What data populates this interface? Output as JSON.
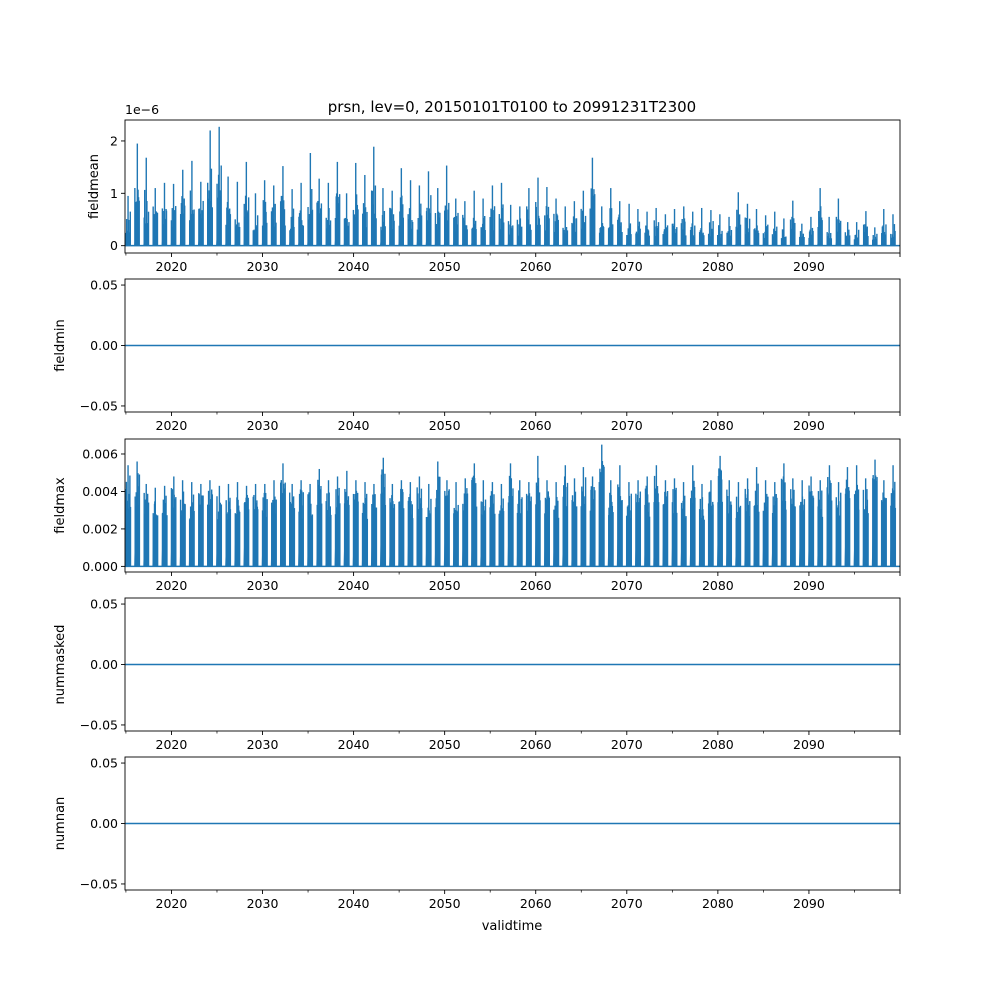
{
  "figure": {
    "title": "prsn, lev=0, 20150101T0100 to 20991231T2300",
    "xlabel": "validtime",
    "series_color": "#1f77b4"
  },
  "chart_data": [
    {
      "type": "line",
      "name": "fieldmean",
      "ylabel": "fieldmean",
      "offset_label": "1e−6",
      "xlim": [
        2014.9,
        2100.0
      ],
      "ylim": [
        -1.4e-07,
        2.4e-06
      ],
      "x_ticks": [
        2020,
        2030,
        2040,
        2050,
        2060,
        2070,
        2080,
        2090
      ],
      "x_tick_labels": [
        "2020",
        "2030",
        "2040",
        "2050",
        "2060",
        "2070",
        "2080",
        "2090"
      ],
      "y_ticks": [
        0,
        1e-06,
        2e-06
      ],
      "y_tick_labels": [
        "0",
        "1",
        "2"
      ],
      "seasonal_peaks": {
        "years": [
          2015,
          2016,
          2017,
          2018,
          2019,
          2020,
          2021,
          2022,
          2023,
          2024,
          2025,
          2026,
          2027,
          2028,
          2029,
          2030,
          2031,
          2032,
          2033,
          2034,
          2035,
          2036,
          2037,
          2038,
          2039,
          2040,
          2041,
          2042,
          2043,
          2044,
          2045,
          2046,
          2047,
          2048,
          2049,
          2050,
          2051,
          2052,
          2053,
          2054,
          2055,
          2056,
          2057,
          2058,
          2059,
          2060,
          2061,
          2062,
          2063,
          2064,
          2065,
          2066,
          2067,
          2068,
          2069,
          2070,
          2071,
          2072,
          2073,
          2074,
          2075,
          2076,
          2077,
          2078,
          2079,
          2080,
          2081,
          2082,
          2083,
          2084,
          2085,
          2086,
          2087,
          2088,
          2089,
          2090,
          2091,
          2092,
          2093,
          2094,
          2095,
          2096,
          2097,
          2098,
          2099
        ],
        "values": [
          9.5e-07,
          1.95e-06,
          1.68e-06,
          1.1e-06,
          1.2e-06,
          1.18e-06,
          1.45e-06,
          1.62e-06,
          1.22e-06,
          2.2e-06,
          2.27e-06,
          1.32e-06,
          1.22e-06,
          1.6e-06,
          1e-06,
          1.25e-06,
          1.15e-06,
          1.52e-06,
          1.08e-06,
          1.2e-06,
          1.77e-06,
          1.28e-06,
          1.2e-06,
          1.6e-06,
          1e-06,
          1.58e-06,
          1.35e-06,
          1.89e-06,
          1.1e-06,
          1.05e-06,
          1.48e-06,
          1.25e-06,
          1.15e-06,
          1.42e-06,
          1.1e-06,
          1.53e-06,
          9e-07,
          8.5e-07,
          1.05e-06,
          9e-07,
          1.15e-06,
          1.2e-06,
          7.8e-07,
          7.5e-07,
          1.1e-06,
          1.3e-06,
          1.12e-06,
          9e-07,
          7.5e-07,
          8.5e-07,
          1.05e-06,
          1.68e-06,
          7.5e-07,
          1.1e-06,
          8.5e-07,
          8e-07,
          7e-07,
          6.5e-07,
          7.2e-07,
          6e-07,
          7e-07,
          7.5e-07,
          6.5e-07,
          7.2e-07,
          6.8e-07,
          6e-07,
          5.5e-07,
          1.02e-06,
          8e-07,
          7e-07,
          5.8e-07,
          6.5e-07,
          5.2e-07,
          8.6e-07,
          4.2e-07,
          5.5e-07,
          1.1e-06,
          5.5e-07,
          9e-07,
          4.5e-07,
          4.5e-07,
          6.6e-07,
          3.5e-07,
          7e-07,
          6e-07
        ]
      }
    },
    {
      "type": "line",
      "name": "fieldmin",
      "ylabel": "fieldmin",
      "xlim": [
        2014.9,
        2100.0
      ],
      "ylim": [
        -0.055,
        0.055
      ],
      "x_ticks": [
        2020,
        2030,
        2040,
        2050,
        2060,
        2070,
        2080,
        2090
      ],
      "x_tick_labels": [
        "2020",
        "2030",
        "2040",
        "2050",
        "2060",
        "2070",
        "2080",
        "2090"
      ],
      "y_ticks": [
        -0.05,
        0.0,
        0.05
      ],
      "y_tick_labels": [
        "−0.05",
        "0.00",
        "0.05"
      ],
      "constant_value": 0.0
    },
    {
      "type": "line",
      "name": "fieldmax",
      "ylabel": "fieldmax",
      "xlim": [
        2014.9,
        2100.0
      ],
      "ylim": [
        -0.0003,
        0.0068
      ],
      "x_ticks": [
        2020,
        2030,
        2040,
        2050,
        2060,
        2070,
        2080,
        2090
      ],
      "x_tick_labels": [
        "2020",
        "2030",
        "2040",
        "2050",
        "2060",
        "2070",
        "2080",
        "2090"
      ],
      "y_ticks": [
        0.0,
        0.002,
        0.004,
        0.006
      ],
      "y_tick_labels": [
        "0.000",
        "0.002",
        "0.004",
        "0.006"
      ],
      "seasonal_peaks": {
        "years": [
          2015,
          2016,
          2017,
          2018,
          2019,
          2020,
          2021,
          2022,
          2023,
          2024,
          2025,
          2026,
          2027,
          2028,
          2029,
          2030,
          2031,
          2032,
          2033,
          2034,
          2035,
          2036,
          2037,
          2038,
          2039,
          2040,
          2041,
          2042,
          2043,
          2044,
          2045,
          2046,
          2047,
          2048,
          2049,
          2050,
          2051,
          2052,
          2053,
          2054,
          2055,
          2056,
          2057,
          2058,
          2059,
          2060,
          2061,
          2062,
          2063,
          2064,
          2065,
          2066,
          2067,
          2068,
          2069,
          2070,
          2071,
          2072,
          2073,
          2074,
          2075,
          2076,
          2077,
          2078,
          2079,
          2080,
          2081,
          2082,
          2083,
          2084,
          2085,
          2086,
          2087,
          2088,
          2089,
          2090,
          2091,
          2092,
          2093,
          2094,
          2095,
          2096,
          2097,
          2098,
          2099
        ],
        "values": [
          0.0054,
          0.0056,
          0.0044,
          0.0042,
          0.0043,
          0.0048,
          0.0046,
          0.0045,
          0.0044,
          0.0046,
          0.0043,
          0.0044,
          0.0045,
          0.0043,
          0.0044,
          0.0044,
          0.0046,
          0.0055,
          0.0044,
          0.0046,
          0.0044,
          0.0052,
          0.0046,
          0.0048,
          0.0051,
          0.0046,
          0.0045,
          0.0044,
          0.0058,
          0.0044,
          0.0046,
          0.0045,
          0.0048,
          0.0044,
          0.0056,
          0.0046,
          0.0045,
          0.0047,
          0.0055,
          0.0046,
          0.0045,
          0.0044,
          0.0055,
          0.0046,
          0.0045,
          0.0059,
          0.0046,
          0.0045,
          0.0054,
          0.0047,
          0.0053,
          0.0048,
          0.0065,
          0.0046,
          0.0054,
          0.0045,
          0.0046,
          0.0048,
          0.0054,
          0.0046,
          0.0047,
          0.0045,
          0.0054,
          0.0044,
          0.0046,
          0.0059,
          0.0046,
          0.0045,
          0.0047,
          0.0053,
          0.0046,
          0.0045,
          0.0055,
          0.0047,
          0.0046,
          0.0048,
          0.0046,
          0.0054,
          0.0045,
          0.0053,
          0.0054,
          0.0047,
          0.0057,
          0.0046,
          0.0054
        ]
      }
    },
    {
      "type": "line",
      "name": "nummasked",
      "ylabel": "nummasked",
      "xlim": [
        2014.9,
        2100.0
      ],
      "ylim": [
        -0.055,
        0.055
      ],
      "x_ticks": [
        2020,
        2030,
        2040,
        2050,
        2060,
        2070,
        2080,
        2090
      ],
      "x_tick_labels": [
        "2020",
        "2030",
        "2040",
        "2050",
        "2060",
        "2070",
        "2080",
        "2090"
      ],
      "y_ticks": [
        -0.05,
        0.0,
        0.05
      ],
      "y_tick_labels": [
        "−0.05",
        "0.00",
        "0.05"
      ],
      "constant_value": 0.0
    },
    {
      "type": "line",
      "name": "numnan",
      "ylabel": "numnan",
      "xlim": [
        2014.9,
        2100.0
      ],
      "ylim": [
        -0.055,
        0.055
      ],
      "x_ticks": [
        2020,
        2030,
        2040,
        2050,
        2060,
        2070,
        2080,
        2090
      ],
      "x_tick_labels": [
        "2020",
        "2030",
        "2040",
        "2050",
        "2060",
        "2070",
        "2080",
        "2090"
      ],
      "y_ticks": [
        -0.05,
        0.0,
        0.05
      ],
      "y_tick_labels": [
        "−0.05",
        "0.00",
        "0.05"
      ],
      "constant_value": 0.0
    }
  ]
}
